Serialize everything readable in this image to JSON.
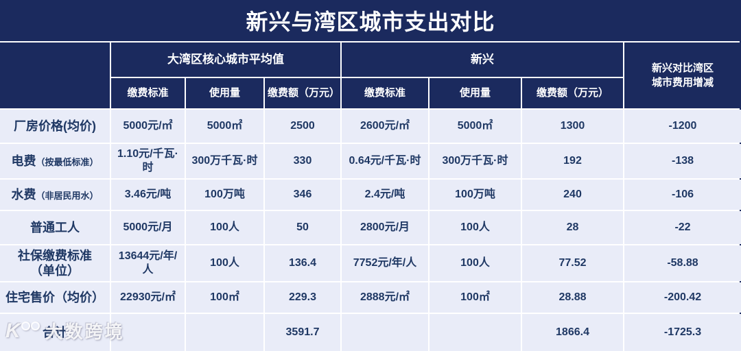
{
  "title": "新兴与湾区城市支出对比",
  "colors": {
    "header_navy": "#1b2a5e",
    "row_background": "#e9ecf8",
    "data_text": "#1f3864",
    "gridline": "#ffffff",
    "watermark": "#ffffff"
  },
  "header": {
    "diff_line1": "新兴对比湾区",
    "diff_line2": "城市费用增减"
  },
  "watermark": {
    "logo_char": "K",
    "text": "大数跨境"
  },
  "chart_data": {
    "type": "table",
    "title": "新兴与湾区城市支出对比",
    "column_groups": [
      {
        "label": "大湾区核心城市平均值",
        "span": 3
      },
      {
        "label": "新兴",
        "span": 3
      },
      {
        "label": "新兴对比湾区城市费用增减",
        "span": 1
      }
    ],
    "subheaders": [
      "缴费标准",
      "使用量",
      "缴费额（万元）",
      "缴费标准",
      "使用量",
      "缴费额（万元）"
    ],
    "rows": [
      {
        "label": "厂房价格(均价)",
        "note": "",
        "cells": [
          "5000元/㎡",
          "5000㎡",
          "2500",
          "2600元/㎡",
          "5000㎡",
          "1300",
          "-1200"
        ]
      },
      {
        "label": "电费",
        "note": "（按最低标准）",
        "cells": [
          "1.10元/千瓦·时",
          "300万千瓦·时",
          "330",
          "0.64元/千瓦·时",
          "300万千瓦·时",
          "192",
          "-138"
        ]
      },
      {
        "label": "水费",
        "note": "（非居民用水）",
        "cells": [
          "3.46元/吨",
          "100万吨",
          "346",
          "2.4元/吨",
          "100万吨",
          "240",
          "-106"
        ]
      },
      {
        "label": "普通工人",
        "note": "",
        "cells": [
          "5000元/月",
          "100人",
          "50",
          "2800元/月",
          "100人",
          "28",
          "-22"
        ]
      },
      {
        "label": "社保缴费标准",
        "sub": "（单位）",
        "note": "",
        "cells": [
          "13644元/年/人",
          "100人",
          "136.4",
          "7752元/年/人",
          "100人",
          "77.52",
          "-58.88"
        ]
      },
      {
        "label": "住宅售价（均价）",
        "note": "",
        "cells": [
          "22930元/㎡",
          "100㎡",
          "229.3",
          "2888元/㎡",
          "100㎡",
          "28.88",
          "-200.42"
        ]
      },
      {
        "label": "合计",
        "note": "",
        "cells": [
          "",
          "",
          "3591.7",
          "",
          "",
          "1866.4",
          "-1725.3"
        ]
      }
    ]
  }
}
